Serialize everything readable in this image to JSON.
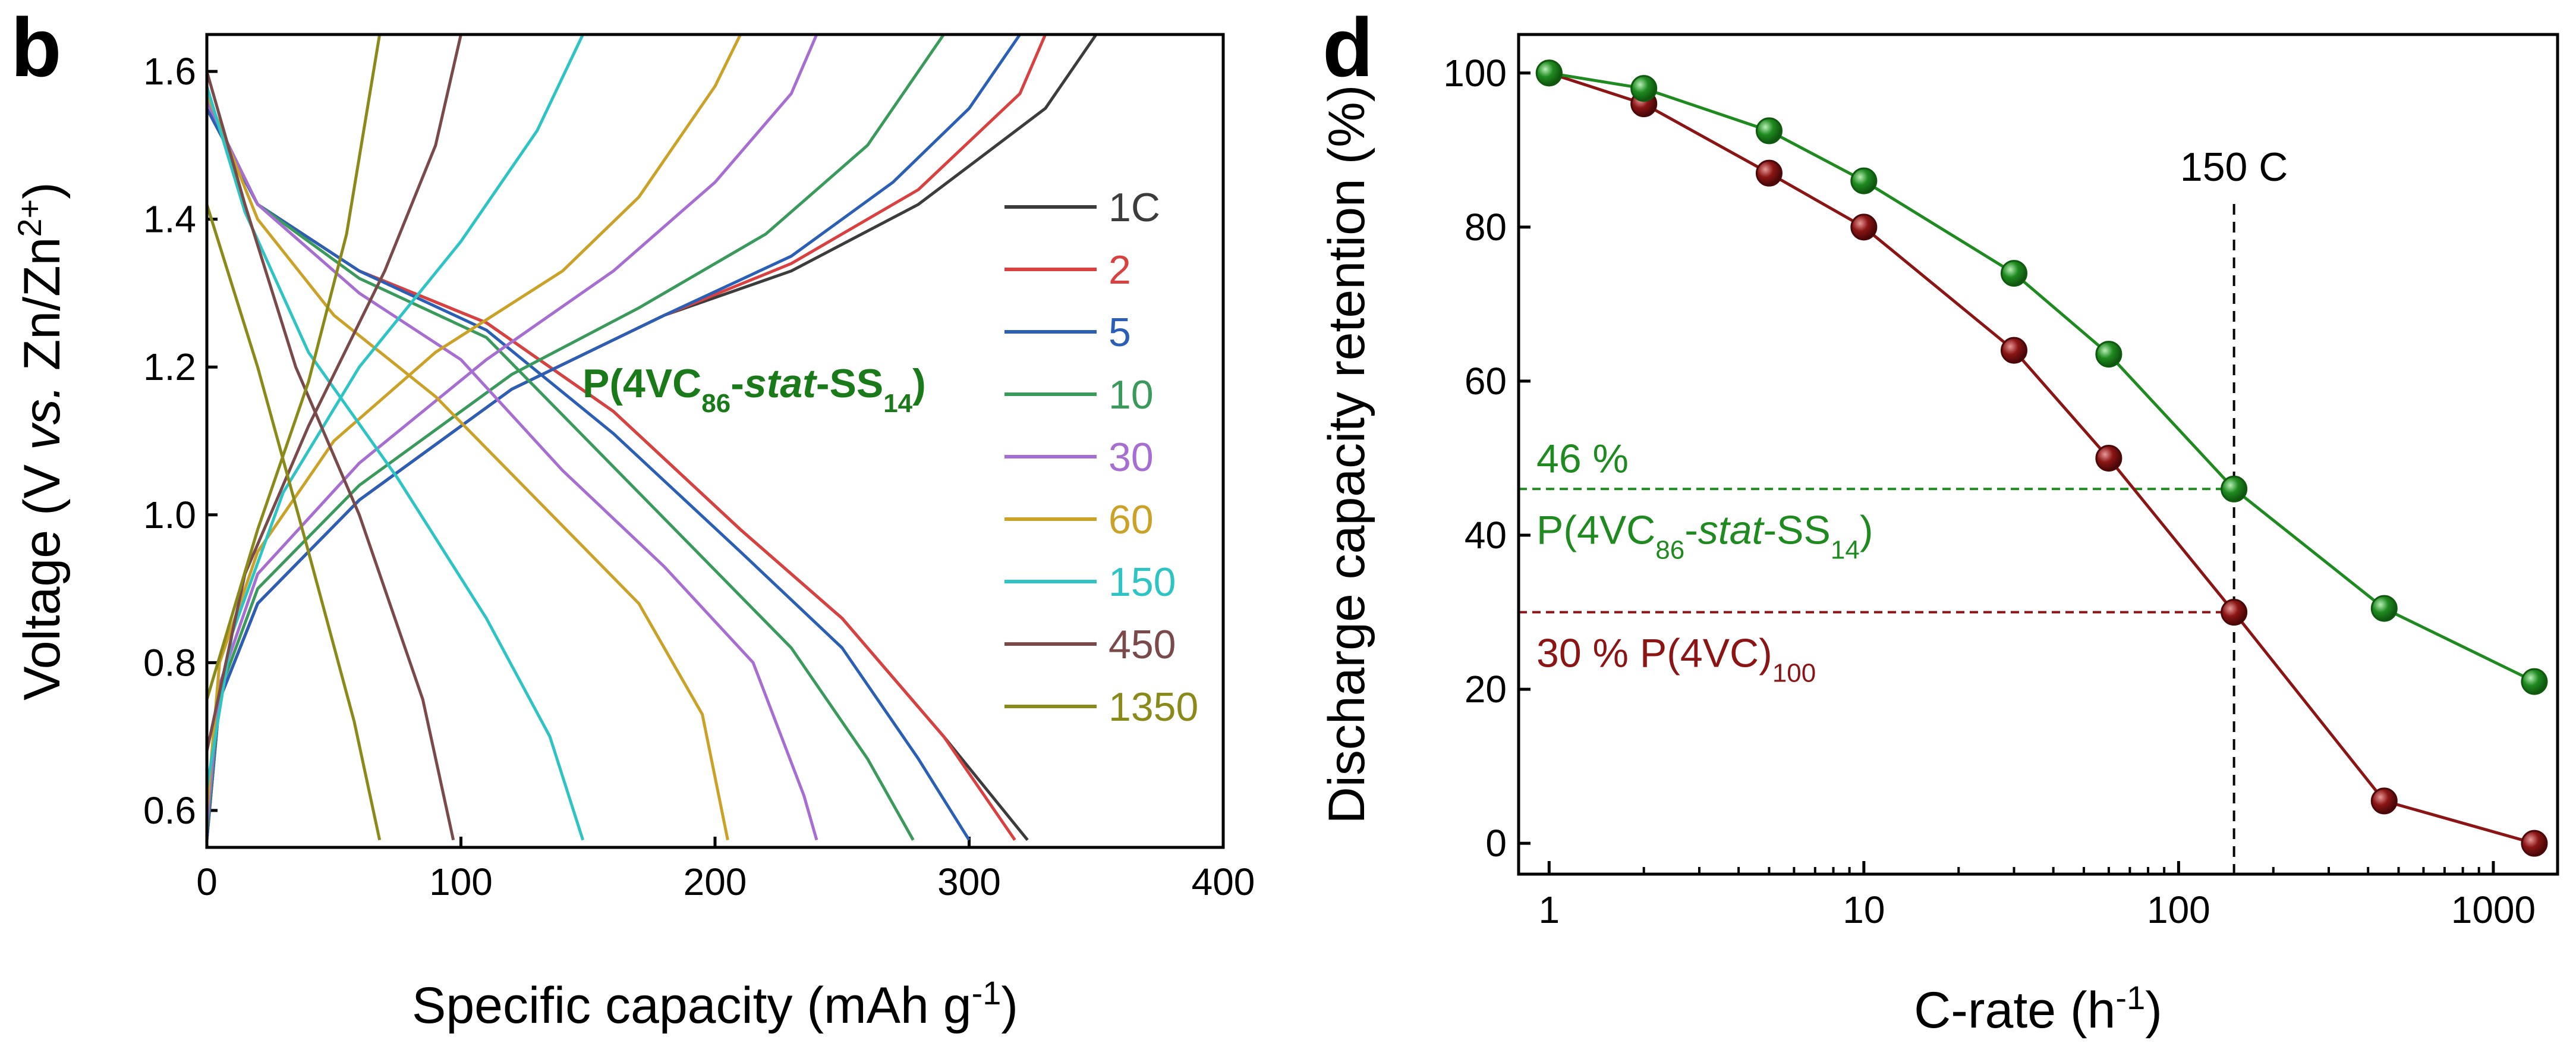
{
  "chart_data": [
    {
      "panel_label": "b",
      "type": "line",
      "xlabel_main": "Specific capacity (mAh g",
      "xlabel_sup": "-1",
      "xlabel_end": ")",
      "ylabel_parts": [
        "Voltage (V ",
        "vs.",
        " Zn/Zn",
        "2+",
        ")"
      ],
      "xlim": [
        0,
        400
      ],
      "ylim": [
        0.55,
        1.65
      ],
      "xticks": [
        0,
        100,
        200,
        300,
        400
      ],
      "xtick_labels": [
        "0",
        "100",
        "200",
        "300",
        "400"
      ],
      "yticks": [
        0.6,
        0.8,
        1.0,
        1.2,
        1.4,
        1.6
      ],
      "ytick_labels": [
        "0.6",
        "0.8",
        "1.0",
        "1.2",
        "1.4",
        "1.6"
      ],
      "annotation": {
        "parts": [
          "P(4VC",
          "86",
          "-",
          "stat",
          "-SS",
          "14",
          ")"
        ],
        "color": "#1a7a1a"
      },
      "series": [
        {
          "name": "1C",
          "color": "#3c3c3c",
          "charge": [
            [
              0,
              0.56
            ],
            [
              5,
              0.75
            ],
            [
              20,
              0.88
            ],
            [
              60,
              1.02
            ],
            [
              120,
              1.17
            ],
            [
              180,
              1.27
            ],
            [
              230,
              1.33
            ],
            [
              280,
              1.42
            ],
            [
              330,
              1.55
            ],
            [
              350,
              1.65
            ]
          ],
          "discharge": [
            [
              0,
              1.55
            ],
            [
              20,
              1.42
            ],
            [
              60,
              1.33
            ],
            [
              110,
              1.26
            ],
            [
              160,
              1.14
            ],
            [
              210,
              0.98
            ],
            [
              250,
              0.86
            ],
            [
              290,
              0.7
            ],
            [
              323,
              0.56
            ]
          ]
        },
        {
          "name": "2",
          "color": "#d94040",
          "charge": [
            [
              0,
              0.56
            ],
            [
              5,
              0.75
            ],
            [
              20,
              0.88
            ],
            [
              60,
              1.02
            ],
            [
              120,
              1.17
            ],
            [
              180,
              1.27
            ],
            [
              230,
              1.34
            ],
            [
              280,
              1.44
            ],
            [
              320,
              1.57
            ],
            [
              330,
              1.65
            ]
          ],
          "discharge": [
            [
              0,
              1.55
            ],
            [
              20,
              1.42
            ],
            [
              60,
              1.33
            ],
            [
              110,
              1.26
            ],
            [
              160,
              1.14
            ],
            [
              210,
              0.98
            ],
            [
              250,
              0.86
            ],
            [
              290,
              0.7
            ],
            [
              318,
              0.56
            ]
          ]
        },
        {
          "name": "5",
          "color": "#2b5fb5",
          "charge": [
            [
              0,
              0.56
            ],
            [
              5,
              0.75
            ],
            [
              20,
              0.88
            ],
            [
              60,
              1.02
            ],
            [
              120,
              1.17
            ],
            [
              180,
              1.27
            ],
            [
              230,
              1.35
            ],
            [
              270,
              1.45
            ],
            [
              300,
              1.55
            ],
            [
              320,
              1.65
            ]
          ],
          "discharge": [
            [
              0,
              1.55
            ],
            [
              20,
              1.42
            ],
            [
              60,
              1.33
            ],
            [
              110,
              1.25
            ],
            [
              160,
              1.11
            ],
            [
              210,
              0.95
            ],
            [
              250,
              0.82
            ],
            [
              280,
              0.67
            ],
            [
              300,
              0.56
            ]
          ]
        },
        {
          "name": "10",
          "color": "#3a9a5c",
          "charge": [
            [
              0,
              0.57
            ],
            [
              5,
              0.76
            ],
            [
              20,
              0.9
            ],
            [
              60,
              1.04
            ],
            [
              120,
              1.19
            ],
            [
              170,
              1.28
            ],
            [
              220,
              1.38
            ],
            [
              260,
              1.5
            ],
            [
              290,
              1.65
            ]
          ],
          "discharge": [
            [
              0,
              1.56
            ],
            [
              20,
              1.42
            ],
            [
              60,
              1.32
            ],
            [
              110,
              1.24
            ],
            [
              150,
              1.1
            ],
            [
              190,
              0.96
            ],
            [
              230,
              0.82
            ],
            [
              260,
              0.67
            ],
            [
              278,
              0.56
            ]
          ]
        },
        {
          "name": "30",
          "color": "#a66ed1",
          "charge": [
            [
              0,
              0.58
            ],
            [
              5,
              0.77
            ],
            [
              20,
              0.92
            ],
            [
              60,
              1.07
            ],
            [
              110,
              1.21
            ],
            [
              160,
              1.33
            ],
            [
              200,
              1.45
            ],
            [
              230,
              1.57
            ],
            [
              240,
              1.65
            ]
          ],
          "discharge": [
            [
              0,
              1.56
            ],
            [
              20,
              1.42
            ],
            [
              60,
              1.3
            ],
            [
              100,
              1.21
            ],
            [
              140,
              1.06
            ],
            [
              180,
              0.93
            ],
            [
              215,
              0.8
            ],
            [
              235,
              0.62
            ],
            [
              240,
              0.56
            ]
          ]
        },
        {
          "name": "60",
          "color": "#c9a227",
          "charge": [
            [
              0,
              0.6
            ],
            [
              5,
              0.8
            ],
            [
              20,
              0.95
            ],
            [
              50,
              1.1
            ],
            [
              90,
              1.22
            ],
            [
              140,
              1.33
            ],
            [
              170,
              1.43
            ],
            [
              200,
              1.58
            ],
            [
              210,
              1.65
            ]
          ],
          "discharge": [
            [
              0,
              1.57
            ],
            [
              20,
              1.4
            ],
            [
              50,
              1.27
            ],
            [
              90,
              1.16
            ],
            [
              130,
              1.02
            ],
            [
              170,
              0.88
            ],
            [
              195,
              0.73
            ],
            [
              205,
              0.56
            ]
          ]
        },
        {
          "name": "150",
          "color": "#2ec4c4",
          "charge": [
            [
              0,
              0.63
            ],
            [
              10,
              0.84
            ],
            [
              30,
              1.03
            ],
            [
              60,
              1.2
            ],
            [
              100,
              1.37
            ],
            [
              130,
              1.52
            ],
            [
              148,
              1.65
            ]
          ],
          "discharge": [
            [
              0,
              1.58
            ],
            [
              15,
              1.41
            ],
            [
              40,
              1.22
            ],
            [
              75,
              1.05
            ],
            [
              110,
              0.86
            ],
            [
              135,
              0.7
            ],
            [
              148,
              0.56
            ]
          ]
        },
        {
          "name": "450",
          "color": "#7a4a4a",
          "charge": [
            [
              0,
              0.68
            ],
            [
              15,
              0.92
            ],
            [
              40,
              1.12
            ],
            [
              70,
              1.33
            ],
            [
              90,
              1.5
            ],
            [
              100,
              1.65
            ]
          ],
          "discharge": [
            [
              0,
              1.6
            ],
            [
              15,
              1.42
            ],
            [
              35,
              1.2
            ],
            [
              60,
              1.0
            ],
            [
              85,
              0.75
            ],
            [
              97,
              0.56
            ]
          ]
        },
        {
          "name": "1350",
          "color": "#8a8a1a",
          "charge": [
            [
              0,
              0.75
            ],
            [
              20,
              0.98
            ],
            [
              40,
              1.18
            ],
            [
              55,
              1.38
            ],
            [
              68,
              1.65
            ]
          ],
          "discharge": [
            [
              0,
              1.42
            ],
            [
              20,
              1.2
            ],
            [
              40,
              0.95
            ],
            [
              58,
              0.72
            ],
            [
              68,
              0.56
            ]
          ]
        }
      ]
    },
    {
      "panel_label": "d",
      "type": "scatter-line",
      "xscale": "log",
      "xlabel_main": "C-rate (h",
      "xlabel_sup": "-1",
      "xlabel_end": ")",
      "ylabel": "Discharge capacity retention (%)",
      "xlim": [
        0.8,
        1600
      ],
      "ylim": [
        -4,
        105
      ],
      "xticks": [
        1,
        10,
        100,
        1000
      ],
      "xtick_labels": [
        "1",
        "10",
        "100",
        "1000"
      ],
      "yticks": [
        0,
        20,
        40,
        60,
        80,
        100
      ],
      "ytick_labels": [
        "0",
        "20",
        "40",
        "60",
        "80",
        "100"
      ],
      "vline": {
        "x": 150,
        "label": "150 C"
      },
      "series": [
        {
          "name": "P(4VC86-stat-SS14)",
          "color": "#1f8a1f",
          "edge": "#0f5a0f",
          "x": [
            1,
            2,
            5,
            10,
            30,
            60,
            150,
            450,
            1350
          ],
          "values": [
            100,
            98,
            92.5,
            86,
            74,
            63.5,
            46,
            30.5,
            21
          ]
        },
        {
          "name": "P(4VC)100",
          "color": "#8b1515",
          "edge": "#4a0808",
          "x": [
            1,
            2,
            5,
            10,
            30,
            60,
            150,
            450,
            1350
          ],
          "values": [
            100,
            96,
            87,
            80,
            64,
            50,
            30,
            5.5,
            0
          ]
        }
      ],
      "annotations": [
        {
          "value_text": "46 %",
          "series_parts": [
            "P(4VC",
            "86",
            "-",
            "stat",
            "-SS",
            "14",
            ")"
          ],
          "color": "#1f8a1f",
          "y": 46
        },
        {
          "value_text": "30 %",
          "series_parts": [
            "P(4VC)",
            "100"
          ],
          "color": "#8b1515",
          "y": 30
        }
      ]
    }
  ]
}
